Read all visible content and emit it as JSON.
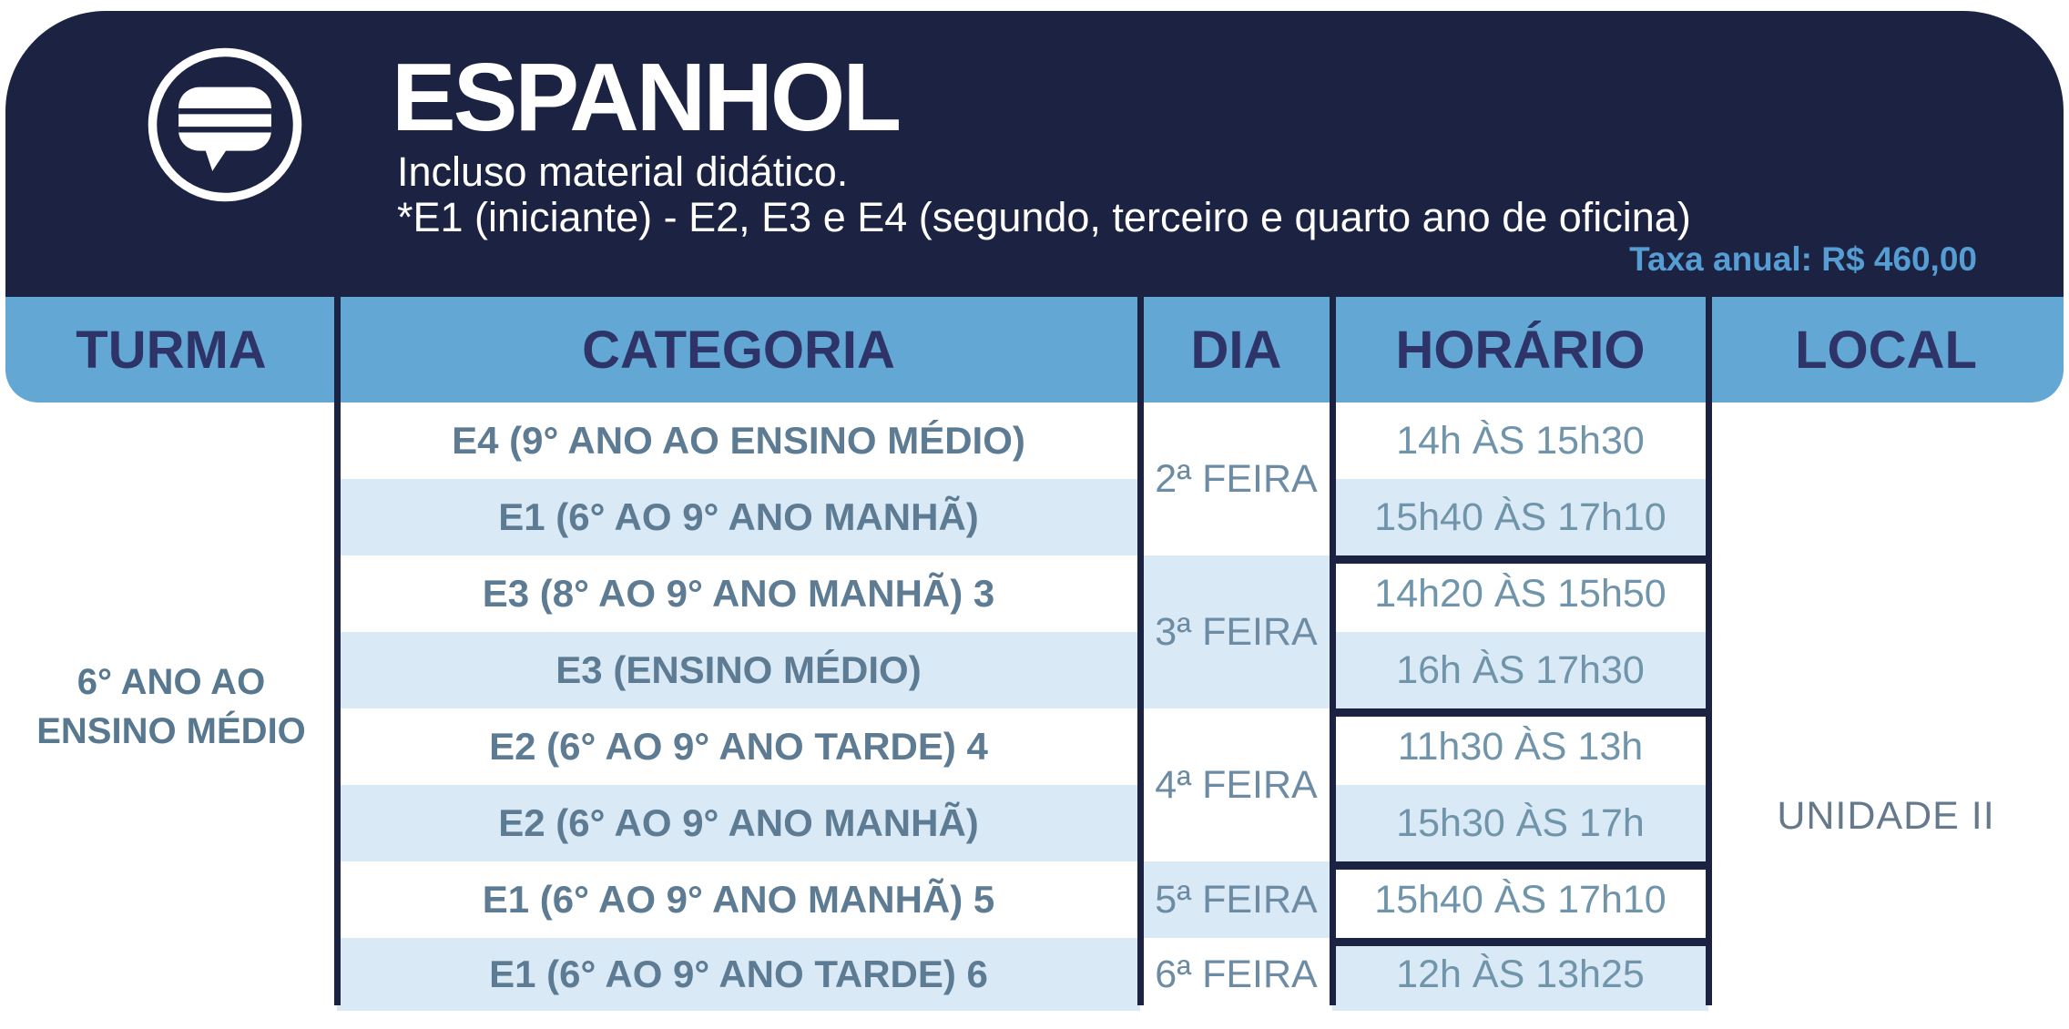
{
  "header": {
    "icon": "chat-bubble-icon",
    "title": "ESPANHOL",
    "subtitle": "Incluso material didático.",
    "note": "*E1 (iniciante) - E2, E3 e E4 (segundo, terceiro e quarto ano de oficina)",
    "fee_label": "Taxa anual: R$ 460,00"
  },
  "colors": {
    "navy": "#1c2342",
    "band_blue": "#63a7d5",
    "header_text": "#2e3468",
    "row_alt_blue": "#d9eaf6",
    "category_text": "#5d7b93",
    "dia_text": "#6d8ca4",
    "horario_text": "#7095ab",
    "turma_text": "#58788f",
    "local_text": "#66798c",
    "fee_text": "#569dd3"
  },
  "table": {
    "columns": [
      "TURMA",
      "CATEGORIA",
      "DIA",
      "HORÁRIO",
      "LOCAL"
    ],
    "turma_lines": [
      "6° ANO AO",
      "ENSINO MÉDIO"
    ],
    "local": "UNIDADE II",
    "rows": [
      {
        "categoria": "E4 (9° ANO AO ENSINO MÉDIO)",
        "horario": "14h ÀS 15h30"
      },
      {
        "categoria": "E1 (6° AO 9° ANO MANHÃ)",
        "horario": "15h40 ÀS 17h10"
      },
      {
        "categoria": "E3 (8° AO 9° ANO MANHÃ) 3",
        "horario": "14h20 ÀS 15h50"
      },
      {
        "categoria": "E3 (ENSINO MÉDIO)",
        "horario": "16h ÀS 17h30"
      },
      {
        "categoria": "E2 (6° AO 9° ANO TARDE) 4",
        "horario": "11h30 ÀS 13h"
      },
      {
        "categoria": "E2 (6° AO 9° ANO MANHÃ)",
        "horario": "15h30 ÀS 17h"
      },
      {
        "categoria": "E1 (6° AO 9° ANO MANHÃ) 5",
        "horario": "15h40 ÀS 17h10"
      },
      {
        "categoria": "E1 (6° AO 9° ANO TARDE) 6",
        "horario": "12h ÀS 13h25"
      }
    ],
    "day_groups": [
      {
        "dia": "2ª FEIRA",
        "span": 2
      },
      {
        "dia": "3ª FEIRA",
        "span": 2
      },
      {
        "dia": "4ª FEIRA",
        "span": 2
      },
      {
        "dia": "5ª FEIRA",
        "span": 1
      },
      {
        "dia": "6ª FEIRA",
        "span": 1
      }
    ]
  }
}
